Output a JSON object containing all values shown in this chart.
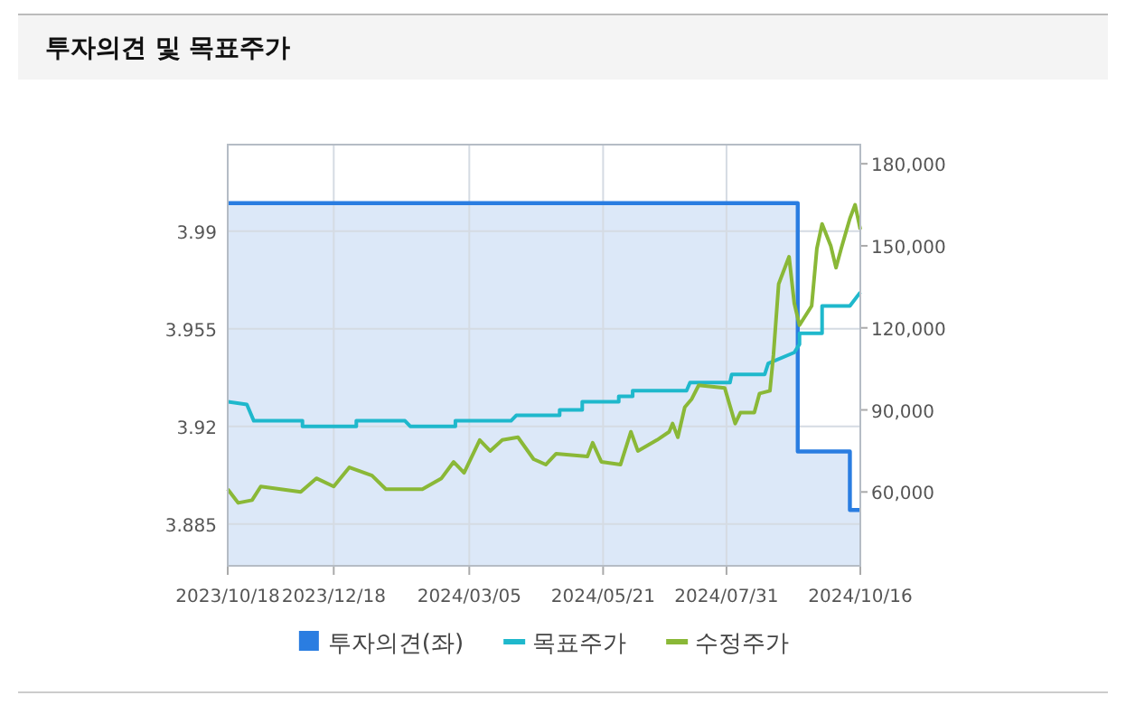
{
  "chart_data": {
    "type": "line",
    "title": "투자의견 및 목표주가",
    "xlim": [
      "2023-10-18",
      "2024-10-16"
    ],
    "xticks": [
      {
        "value": "2023-10-18",
        "label": "2023/10/18"
      },
      {
        "value": "2023-12-18",
        "label": "2023/12/18"
      },
      {
        "value": "2024-03-05",
        "label": "2024/03/05"
      },
      {
        "value": "2024-05-21",
        "label": "2024/05/21"
      },
      {
        "value": "2024-07-31",
        "label": "2024/07/31"
      },
      {
        "value": "2024-10-16",
        "label": "2024/10/16"
      }
    ],
    "ylim": [
      3.87,
      4.021
    ],
    "yticks": [
      3.885,
      3.92,
      3.955,
      3.99
    ],
    "y2lim": [
      33000,
      187000
    ],
    "y2ticks": [
      {
        "value": 60000,
        "label": "60,000"
      },
      {
        "value": 90000,
        "label": "90,000"
      },
      {
        "value": 120000,
        "label": "120,000"
      },
      {
        "value": 150000,
        "label": "150,000"
      },
      {
        "value": 180000,
        "label": "180,000"
      }
    ],
    "grid": true,
    "legend": "bottom",
    "series": [
      {
        "name": "투자의견(좌)",
        "type": "area",
        "color": "#2a7de1",
        "x": [
          "2023-10-18",
          "2024-09-10",
          "2024-09-10",
          "2024-10-10",
          "2024-10-10",
          "2024-10-16"
        ],
        "values": [
          4.0,
          4.0,
          3.911,
          3.911,
          3.89,
          3.89
        ]
      },
      {
        "name": "목표주가",
        "axis": "y2",
        "color": "#1fb8cc",
        "x": [
          "2023-10-18",
          "2023-10-29",
          "2023-11-02",
          "2023-11-30",
          "2023-11-30",
          "2023-12-31",
          "2023-12-31",
          "2024-01-28",
          "2024-01-31",
          "2024-02-26",
          "2024-02-26",
          "2024-03-29",
          "2024-04-01",
          "2024-04-26",
          "2024-04-26",
          "2024-05-09",
          "2024-05-09",
          "2024-05-30",
          "2024-05-30",
          "2024-06-07",
          "2024-06-07",
          "2024-07-08",
          "2024-07-10",
          "2024-08-02",
          "2024-08-03",
          "2024-08-22",
          "2024-08-24",
          "2024-09-08",
          "2024-09-11",
          "2024-09-11",
          "2024-09-24",
          "2024-09-24",
          "2024-10-10",
          "2024-10-16"
        ],
        "values": [
          93000,
          92000,
          86000,
          86000,
          84000,
          84000,
          86000,
          86000,
          84000,
          84000,
          86000,
          86000,
          88000,
          88000,
          90000,
          90000,
          93000,
          93000,
          95000,
          95000,
          97000,
          97000,
          100000,
          100000,
          103000,
          103000,
          107000,
          111000,
          114000,
          118000,
          118000,
          128000,
          128000,
          133000
        ]
      },
      {
        "name": "수정주가",
        "axis": "y2",
        "color": "#8ab837",
        "x": [
          "2023-10-18",
          "2023-10-24",
          "2023-11-01",
          "2023-11-06",
          "2023-11-29",
          "2023-12-08",
          "2023-12-18",
          "2023-12-27",
          "2024-01-09",
          "2024-01-17",
          "2024-02-07",
          "2024-02-18",
          "2024-02-25",
          "2024-03-02",
          "2024-03-11",
          "2024-03-17",
          "2024-03-24",
          "2024-04-02",
          "2024-04-11",
          "2024-04-18",
          "2024-04-24",
          "2024-05-12",
          "2024-05-15",
          "2024-05-20",
          "2024-05-31",
          "2024-06-06",
          "2024-06-10",
          "2024-06-21",
          "2024-06-28",
          "2024-06-30",
          "2024-07-03",
          "2024-07-07",
          "2024-07-11",
          "2024-07-15",
          "2024-07-30",
          "2024-08-05",
          "2024-08-08",
          "2024-08-16",
          "2024-08-19",
          "2024-08-25",
          "2024-08-27",
          "2024-08-30",
          "2024-09-05",
          "2024-09-08",
          "2024-09-11",
          "2024-09-18",
          "2024-09-21",
          "2024-09-24",
          "2024-09-29",
          "2024-10-02",
          "2024-10-05",
          "2024-10-10",
          "2024-10-13",
          "2024-10-16"
        ],
        "values": [
          61000,
          56000,
          57000,
          62000,
          60000,
          65000,
          62000,
          69000,
          66000,
          61000,
          61000,
          65000,
          71000,
          67000,
          79000,
          75000,
          79000,
          80000,
          72000,
          70000,
          74000,
          73000,
          78000,
          71000,
          70000,
          82000,
          75000,
          79000,
          82000,
          85000,
          80000,
          91000,
          94000,
          99000,
          98000,
          85000,
          89000,
          89000,
          96000,
          97000,
          110000,
          136000,
          146000,
          129000,
          121000,
          128000,
          149000,
          158000,
          150000,
          142000,
          149000,
          160000,
          165000,
          156000
        ]
      }
    ]
  }
}
